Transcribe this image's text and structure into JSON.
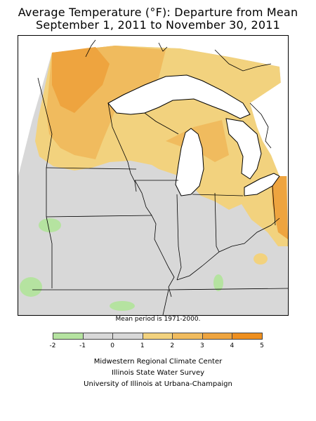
{
  "title_line1": "Average Temperature (°F): Departure from Mean",
  "title_line2": "September 1, 2011 to November 30, 2011",
  "note": "Mean period is 1971-2000.",
  "legend": {
    "ticks": [
      "-2",
      "-1",
      "0",
      "1",
      "2",
      "3",
      "4",
      "5"
    ],
    "bins": [
      {
        "from": -2,
        "to": -1,
        "color": "#b5e3a0"
      },
      {
        "from": -1,
        "to": 0,
        "color": "#d8d8d8"
      },
      {
        "from": 0,
        "to": 1,
        "color": "#d8d8d8"
      },
      {
        "from": 1,
        "to": 2,
        "color": "#f2d27e"
      },
      {
        "from": 2,
        "to": 3,
        "color": "#f0bb5e"
      },
      {
        "from": 3,
        "to": 4,
        "color": "#eea43f"
      },
      {
        "from": 4,
        "to": 5,
        "color": "#ee8f1f"
      }
    ]
  },
  "credits": {
    "line1": "Midwestern Regional Climate Center",
    "line2": "Illinois State Water Survey",
    "line3": "University of Illinois at Urbana-Champaign"
  },
  "colors": {
    "neutral": "#d8d8d8",
    "cool": "#b5e3a0",
    "warm1": "#f2d27e",
    "warm2": "#f0bb5e",
    "warm3": "#eea43f",
    "water": "#ffffff",
    "border": "#000000"
  }
}
